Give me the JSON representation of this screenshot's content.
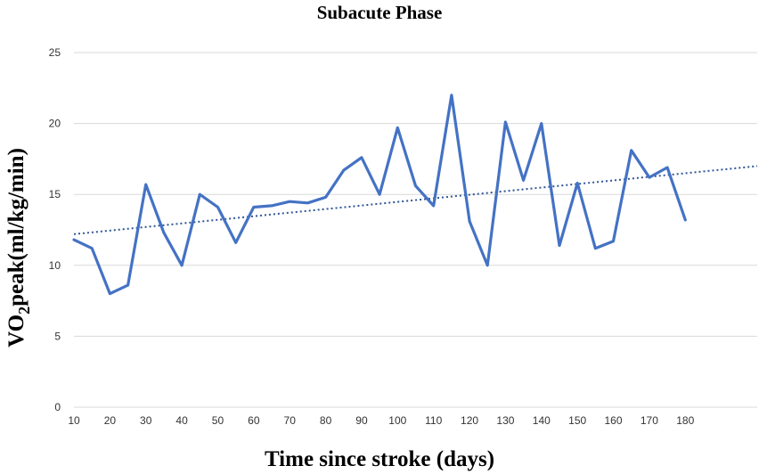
{
  "chart_data": {
    "type": "line",
    "title": "Subacute Phase",
    "xlabel": "Time since stroke (days)",
    "ylabel_main": "VO",
    "ylabel_sub": "2",
    "ylabel_rest": "peak(ml/kg/min)",
    "ylim": [
      0,
      25
    ],
    "yticks": [
      0,
      5,
      10,
      15,
      20,
      25
    ],
    "xticks": [
      10,
      20,
      30,
      40,
      50,
      60,
      70,
      80,
      90,
      100,
      110,
      120,
      130,
      140,
      150,
      160,
      170,
      180
    ],
    "grid": true,
    "legend": false,
    "colors": {
      "series": "#4472c4",
      "trend": "#2f5597",
      "grid": "#d9d9d9"
    },
    "series": [
      {
        "x": [
          10,
          15,
          20,
          25,
          30,
          35,
          40,
          45,
          50,
          55,
          60,
          65,
          70,
          75,
          80,
          85,
          90,
          95,
          100,
          105,
          110,
          115,
          120,
          125,
          130,
          135,
          140,
          145,
          150,
          155,
          160,
          165,
          170,
          175,
          180
        ],
        "values": [
          11.8,
          11.2,
          8.0,
          8.6,
          15.7,
          12.3,
          10.0,
          15.0,
          14.1,
          11.6,
          14.1,
          14.2,
          14.5,
          14.4,
          14.8,
          16.7,
          17.6,
          15.0,
          19.7,
          15.6,
          14.2,
          22.0,
          13.1,
          10.0,
          20.1,
          16.0,
          20.0,
          11.4,
          15.8,
          11.2,
          11.7,
          18.1,
          16.2,
          16.9,
          13.2
        ]
      }
    ],
    "trendline": {
      "type": "linear",
      "x": [
        10,
        200
      ],
      "values": [
        12.2,
        17.0
      ]
    }
  }
}
